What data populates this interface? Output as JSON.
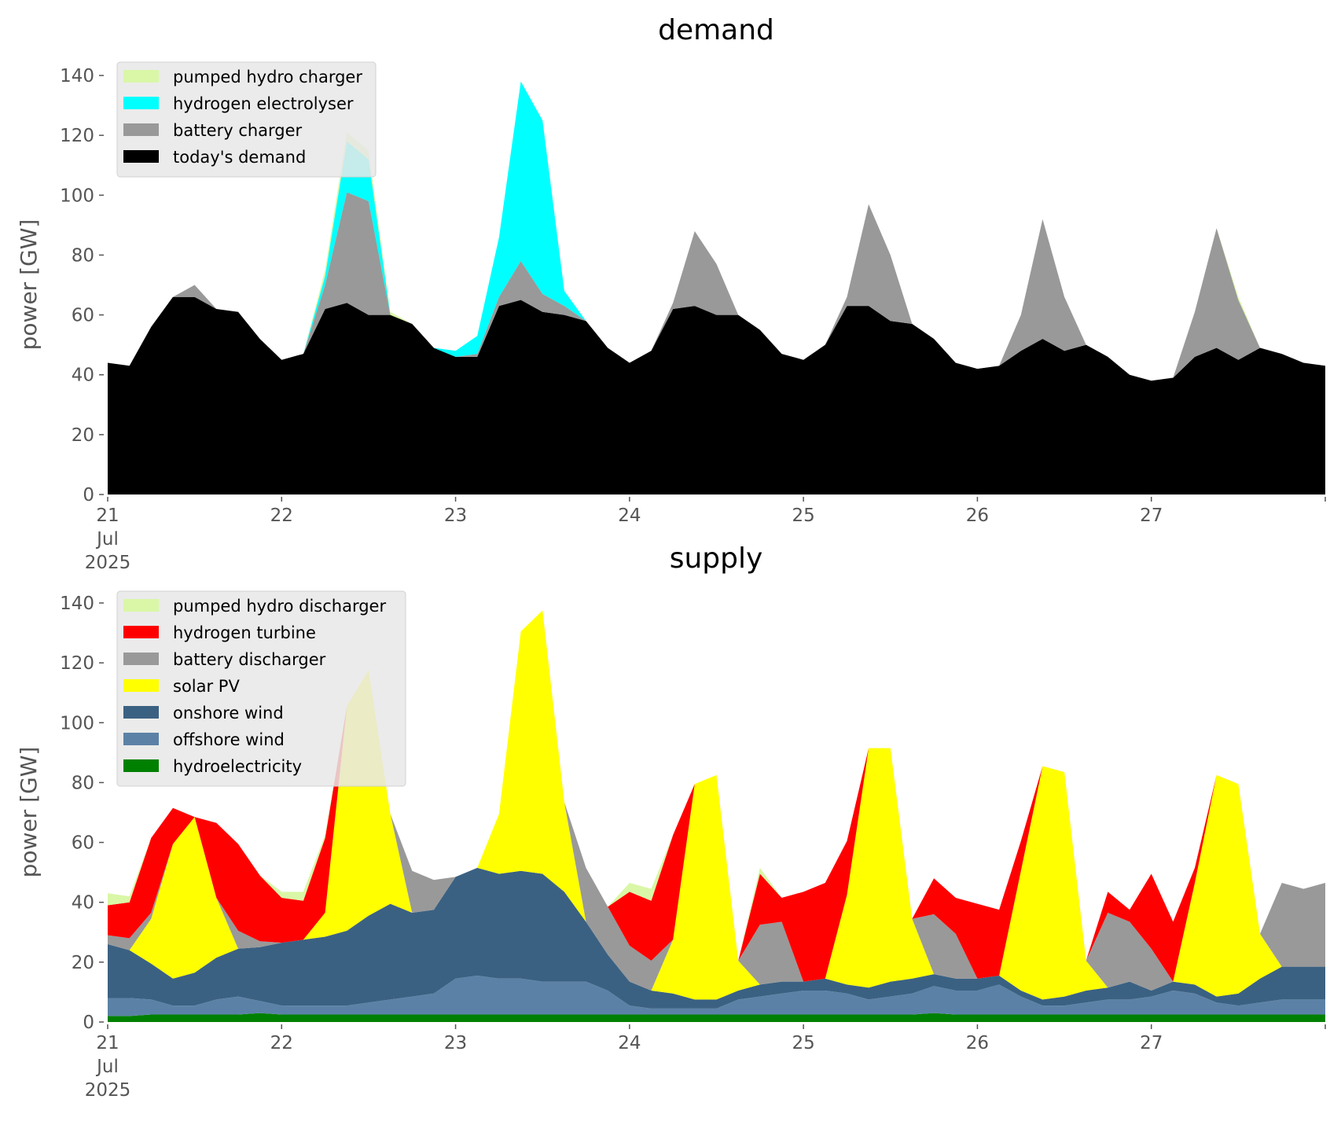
{
  "chart_data": [
    {
      "type": "area",
      "title": "demand",
      "xlabel": "",
      "ylabel": "power [GW]",
      "ylim": [
        0,
        145
      ],
      "yticks": [
        0,
        20,
        40,
        60,
        80,
        100,
        120,
        140
      ],
      "xlim_hours": [
        0,
        168
      ],
      "x_ticks": [
        {
          "hour": 0,
          "label": [
            "21",
            "Jul",
            "2025"
          ]
        },
        {
          "hour": 24,
          "label": [
            "22"
          ]
        },
        {
          "hour": 48,
          "label": [
            "23"
          ]
        },
        {
          "hour": 72,
          "label": [
            "24"
          ]
        },
        {
          "hour": 96,
          "label": [
            "25"
          ]
        },
        {
          "hour": 120,
          "label": [
            "26"
          ]
        },
        {
          "hour": 144,
          "label": [
            "27"
          ]
        },
        {
          "hour": 168,
          "label": [
            ""
          ]
        }
      ],
      "x_step_hours": 3,
      "stacked": true,
      "legend_position": "top-left",
      "legend_order": [
        "pumped hydro charger",
        "hydrogen electrolyser",
        "battery charger",
        "today's demand"
      ],
      "series": [
        {
          "name": "today's demand",
          "color": "#000000",
          "values": [
            44,
            43,
            56,
            66,
            66,
            62,
            61,
            52,
            45,
            47,
            62,
            64,
            60,
            60,
            57,
            49,
            46,
            46,
            63,
            65,
            61,
            60,
            58,
            49,
            44,
            48,
            62,
            63,
            60,
            60,
            55,
            47,
            45,
            50,
            63,
            63,
            58,
            57,
            52,
            44,
            42,
            43,
            48,
            52,
            48,
            50,
            46,
            40,
            38,
            39,
            46,
            49,
            45,
            49,
            47,
            44,
            43
          ]
        },
        {
          "name": "battery charger",
          "color": "#999999",
          "values": [
            0,
            0,
            0,
            0,
            4,
            0,
            0,
            0,
            0,
            0,
            8,
            37,
            38,
            0,
            0,
            0,
            0,
            1,
            3,
            13,
            6,
            3,
            0,
            0,
            0,
            0,
            2,
            25,
            17,
            0,
            0,
            0,
            0,
            0,
            3,
            34,
            22,
            0,
            0,
            0,
            0,
            0,
            12,
            40,
            18,
            0,
            0,
            0,
            0,
            0,
            15,
            40,
            20,
            0,
            0,
            0,
            0
          ]
        },
        {
          "name": "hydrogen electrolyser",
          "color": "#00ffff",
          "values": [
            0,
            0,
            0,
            0,
            0,
            0,
            0,
            0,
            0,
            0,
            3,
            17,
            14,
            0,
            0,
            0,
            2,
            6,
            20,
            60,
            58,
            5,
            0,
            0,
            0,
            0,
            0,
            0,
            0,
            0,
            0,
            0,
            0,
            0,
            0,
            0,
            0,
            0,
            0,
            0,
            0,
            0,
            0,
            0,
            0,
            0,
            0,
            0,
            0,
            0,
            0,
            0,
            0,
            0,
            0,
            0,
            0
          ]
        },
        {
          "name": "pumped hydro charger",
          "color": "#d9f7a6",
          "values": [
            0,
            0,
            0,
            0,
            0,
            0,
            0,
            0,
            0,
            0,
            2,
            3,
            3,
            1,
            0,
            0,
            0,
            0,
            0,
            0,
            0,
            0,
            0,
            0,
            0,
            0,
            0,
            0,
            0,
            0,
            0,
            0,
            0,
            0,
            0,
            0,
            0,
            0,
            0,
            0,
            0,
            0,
            0,
            0,
            0,
            0,
            0,
            0,
            0,
            0,
            0,
            0,
            1,
            0,
            0,
            0,
            0
          ]
        }
      ]
    },
    {
      "type": "area",
      "title": "supply",
      "xlabel": "",
      "ylabel": "power [GW]",
      "ylim": [
        0,
        145
      ],
      "yticks": [
        0,
        20,
        40,
        60,
        80,
        100,
        120,
        140
      ],
      "xlim_hours": [
        0,
        168
      ],
      "x_ticks": [
        {
          "hour": 0,
          "label": [
            "21",
            "Jul",
            "2025"
          ]
        },
        {
          "hour": 24,
          "label": [
            "22"
          ]
        },
        {
          "hour": 48,
          "label": [
            "23"
          ]
        },
        {
          "hour": 72,
          "label": [
            "24"
          ]
        },
        {
          "hour": 96,
          "label": [
            "25"
          ]
        },
        {
          "hour": 120,
          "label": [
            "26"
          ]
        },
        {
          "hour": 144,
          "label": [
            "27"
          ]
        },
        {
          "hour": 168,
          "label": [
            ""
          ]
        }
      ],
      "x_step_hours": 3,
      "stacked": true,
      "legend_position": "top-left",
      "legend_order": [
        "pumped hydro discharger",
        "hydrogen turbine",
        "battery discharger",
        "solar PV",
        "onshore wind",
        "offshore wind",
        "hydroelectricity"
      ],
      "series": [
        {
          "name": "hydroelectricity",
          "color": "#008000",
          "values": [
            2,
            2,
            2.5,
            2.5,
            2.5,
            2.5,
            2.5,
            3,
            2.5,
            2.5,
            2.5,
            2.5,
            2.5,
            2.5,
            2.5,
            2.5,
            2.5,
            2.5,
            2.5,
            2.5,
            2.5,
            2.5,
            2.5,
            2.5,
            2.5,
            2.5,
            2.5,
            2.5,
            2.5,
            2.5,
            2.5,
            2.5,
            2.5,
            2.5,
            2.5,
            2.5,
            2.5,
            2.5,
            3,
            2.5,
            2.5,
            2.5,
            2.5,
            2.5,
            2.5,
            2.5,
            2.5,
            2.5,
            2.5,
            2.5,
            2.5,
            2.5,
            2.5,
            2.5,
            2.5,
            2.5,
            2.5
          ]
        },
        {
          "name": "offshore wind",
          "color": "#5b82a6",
          "values": [
            6,
            6,
            5,
            3,
            3,
            5,
            6,
            4,
            3,
            3,
            3,
            3,
            4,
            5,
            6,
            7,
            12,
            13,
            12,
            12,
            11,
            11,
            11,
            8,
            3,
            2,
            2,
            2,
            2,
            5,
            6,
            7,
            8,
            8,
            7,
            5,
            6,
            7,
            9,
            8,
            8,
            10,
            6,
            3,
            3,
            4,
            5,
            5,
            6,
            8,
            7,
            4,
            3,
            4,
            5,
            5,
            5
          ]
        },
        {
          "name": "onshore wind",
          "color": "#3b6182",
          "values": [
            18,
            16,
            12,
            9,
            11,
            14,
            16,
            18,
            21,
            22,
            23,
            25,
            29,
            32,
            28,
            28,
            34,
            36,
            35,
            36,
            36,
            30,
            20,
            12,
            8,
            6,
            5,
            3,
            3,
            3,
            4,
            4,
            3,
            4,
            3,
            4,
            5,
            5,
            4,
            4,
            4,
            3,
            2,
            2,
            3,
            4,
            4,
            6,
            2,
            3,
            3,
            2,
            4,
            8,
            11,
            11,
            11
          ]
        },
        {
          "name": "solar PV",
          "color": "#ffff00",
          "values": [
            0,
            0,
            15,
            45,
            52,
            20,
            0,
            0,
            0,
            0,
            8,
            75,
            82,
            30,
            0,
            0,
            0,
            0,
            20,
            80,
            88,
            30,
            0,
            0,
            0,
            0,
            18,
            72,
            75,
            10,
            0,
            0,
            0,
            0,
            30,
            80,
            78,
            20,
            0,
            0,
            0,
            0,
            40,
            78,
            75,
            10,
            0,
            0,
            0,
            0,
            34,
            74,
            70,
            15,
            0,
            0,
            0
          ]
        },
        {
          "name": "battery discharger",
          "color": "#999999",
          "values": [
            3,
            4,
            2,
            0,
            0,
            0,
            6,
            2,
            0,
            0,
            0,
            0,
            0,
            0,
            14,
            10,
            0,
            0,
            0,
            0,
            0,
            0,
            18,
            16,
            12,
            10,
            0,
            0,
            0,
            0,
            20,
            20,
            0,
            0,
            0,
            0,
            0,
            0,
            20,
            15,
            0,
            0,
            0,
            0,
            0,
            0,
            25,
            20,
            14,
            0,
            0,
            0,
            0,
            0,
            28,
            26,
            28
          ]
        },
        {
          "name": "hydrogen turbine",
          "color": "#ff0000",
          "values": [
            10,
            12,
            25,
            12,
            0,
            25,
            29,
            22,
            15,
            13,
            25,
            0,
            0,
            0,
            0,
            0,
            0,
            0,
            0,
            0,
            0,
            0,
            0,
            0,
            18,
            20,
            35,
            0,
            0,
            0,
            17,
            8,
            30,
            32,
            18,
            0,
            0,
            0,
            12,
            12,
            25,
            22,
            10,
            0,
            0,
            0,
            7,
            4,
            25,
            20,
            5,
            0,
            0,
            0,
            0,
            0,
            0
          ]
        },
        {
          "name": "pumped hydro discharger",
          "color": "#d9f7a6",
          "values": [
            4,
            2,
            0,
            0,
            0,
            0,
            0,
            0,
            2,
            3,
            1,
            0,
            0,
            0,
            0,
            0,
            0,
            0,
            0,
            0,
            0,
            0,
            0,
            0,
            3,
            4,
            0,
            0,
            0,
            0,
            2,
            0,
            0,
            0,
            0,
            0,
            0,
            0,
            0,
            0,
            0,
            0,
            0,
            0,
            0,
            0,
            0,
            0,
            0,
            0,
            0,
            0,
            0,
            0,
            0,
            0,
            0
          ]
        }
      ]
    }
  ]
}
